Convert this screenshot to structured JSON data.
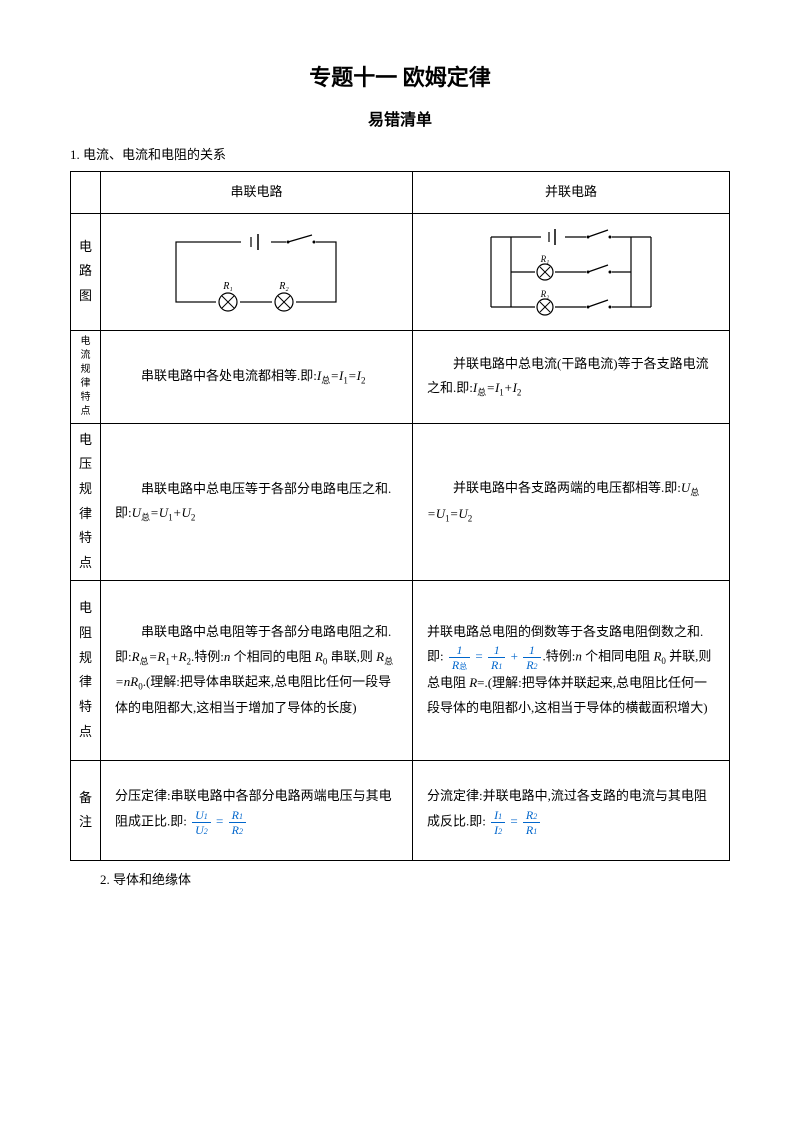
{
  "title": "专题十一 欧姆定律",
  "subtitle": "易错清单",
  "section1": "1. 电流、电流和电阻的关系",
  "headers": {
    "series": "串联电路",
    "parallel": "并联电路"
  },
  "rowLabels": {
    "diagram": "电路图",
    "current": "电流规律特点",
    "voltage": "电压规律特点",
    "resistance": "电阻规律特点",
    "note": "备注"
  },
  "current": {
    "series_pre": "串联电路中各处电流都相等.即:",
    "series_eq": "I",
    "series_sub": "总",
    "series_post1": "=I",
    "series_post2": "=I",
    "parallel_pre": "并联电路中总电流(干路电流)等于各支路电流之和.即:",
    "parallel_eq": "I",
    "parallel_sub": "总",
    "parallel_mid": "=I",
    "parallel_plus": "+I"
  },
  "voltage": {
    "series_pre": "串联电路中总电压等于各部分电路电压之和.即:",
    "series_u": "U",
    "series_sub": "总",
    "series_mid": "=U",
    "series_plus": "+U",
    "parallel_pre": "并联电路中各支路两端的电压都相等.即:",
    "parallel_u": "U",
    "parallel_sub": "总",
    "parallel_mid1": "=U",
    "parallel_mid2": "=U"
  },
  "resistance": {
    "series_pre": "串联电路中总电阻等于各部分电路电阻之和.即:",
    "series_r": "R",
    "series_sub": "总",
    "series_mid": "=R",
    "series_plus": "+R",
    "series_ex": ".特例:",
    "series_n": "n",
    "series_ex2": " 个相同的电阻 ",
    "series_r0": "R",
    "series_ex3": " 串联,则 ",
    "series_eq2": "=nR",
    "series_explain": ".(理解:把导体串联起来,总电阻比任何一段导体的电阻都大,这相当于增加了导体的长度)",
    "parallel_pre": "并联电路总电阻的倒数等于各支路电阻倒数之和.即:",
    "parallel_ex": ".特例:",
    "parallel_n": "n",
    "parallel_ex2": " 个相同电阻 ",
    "parallel_r0": "R",
    "parallel_ex3": " 并联,则总电阻 ",
    "parallel_r": "R",
    "parallel_eq": "=.(理解:把导体并联起来,总电阻比任何一段导体的电阻都小,这相当于导体的横截面积增大)"
  },
  "note": {
    "series_pre": "分压定律:串联电路中各部分电路两端电压与其电阻成正比.即:",
    "parallel_pre": "分流定律:并联电路中,流过各支路的电流与其电阻成反比.即:"
  },
  "section2": "2. 导体和绝缘体",
  "colors": {
    "text": "#000000",
    "accent": "#0066cc",
    "border": "#000000",
    "bg": "#ffffff"
  }
}
